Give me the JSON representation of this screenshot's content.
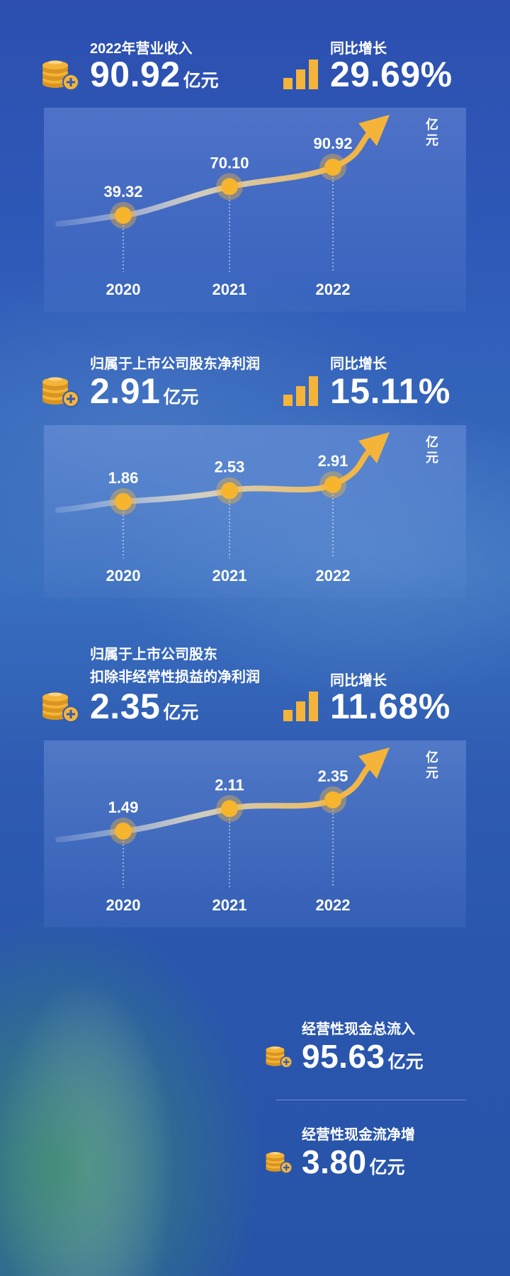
{
  "colors": {
    "accent": "#f4b43a",
    "text": "#ffffff",
    "background": "#2f5ab8"
  },
  "icons": {
    "coin": "coin-stack-plus-icon",
    "growth": "bar-chart-icon"
  },
  "sections": [
    {
      "title_lines": [
        "2022年营业收入"
      ],
      "value": "90.92",
      "unit": "亿元",
      "growth_label": "同比增长",
      "growth_value": "29.69%"
    },
    {
      "title_lines": [
        "归属于上市公司股东净利润"
      ],
      "value": "2.91",
      "unit": "亿元",
      "growth_label": "同比增长",
      "growth_value": "15.11%"
    },
    {
      "title_lines": [
        "归属于上市公司股东",
        "扣除非经常性损益的净利润"
      ],
      "value": "2.35",
      "unit": "亿元",
      "growth_label": "同比增长",
      "growth_value": "11.68%"
    }
  ],
  "chart_data": [
    {
      "type": "line",
      "categories": [
        "2020",
        "2021",
        "2022"
      ],
      "series": [
        {
          "values": [
            39.32,
            70.1,
            90.92
          ],
          "labels": [
            "39.32",
            "70.10",
            "90.92"
          ]
        }
      ],
      "unit_label": "亿元"
    },
    {
      "type": "line",
      "categories": [
        "2020",
        "2021",
        "2022"
      ],
      "series": [
        {
          "values": [
            1.86,
            2.53,
            2.91
          ],
          "labels": [
            "1.86",
            "2.53",
            "2.91"
          ]
        }
      ],
      "unit_label": "亿元"
    },
    {
      "type": "line",
      "categories": [
        "2020",
        "2021",
        "2022"
      ],
      "series": [
        {
          "values": [
            1.49,
            2.11,
            2.35
          ],
          "labels": [
            "1.49",
            "2.11",
            "2.35"
          ]
        }
      ],
      "unit_label": "亿元"
    }
  ],
  "cashflow": [
    {
      "label": "经营性现金总流入",
      "value": "95.63",
      "unit": "亿元"
    },
    {
      "label": "经营性现金流净增",
      "value": "3.80",
      "unit": "亿元"
    }
  ]
}
